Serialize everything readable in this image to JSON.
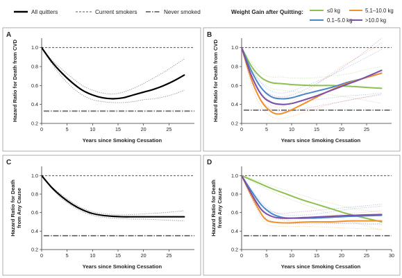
{
  "legend": {
    "items": [
      {
        "label": "All quitters",
        "style": "solid-thick",
        "color": "#000000"
      },
      {
        "label": "Current smokers",
        "style": "dashed",
        "color": "#555555"
      },
      {
        "label": "Never smoked",
        "style": "dash-dot-thick",
        "color": "#7a7a7a"
      }
    ],
    "weight_title": "Weight Gain after Quitting:",
    "weight_items": [
      {
        "label": "≤0 kg",
        "color": "#8cc152"
      },
      {
        "label": "5.1–10.0 kg",
        "color": "#f0902b"
      },
      {
        "label": "0.1–5.0 kg",
        "color": "#4a86c8"
      },
      {
        "label": ">10.0 kg",
        "color": "#7b4fa8"
      }
    ]
  },
  "colors": {
    "ci": "#888888",
    "ref_current": "#555555",
    "ref_never": "#7a7a7a",
    "frame": "#999999"
  },
  "chart_data": [
    {
      "panel": "A",
      "type": "line",
      "ylabel": "Hazard Ratio for Death from CVD",
      "xlabel": "Years since Smoking Cessation",
      "xlim": [
        0,
        30
      ],
      "ylim": [
        0.2,
        1.1
      ],
      "xticks": [
        0,
        5,
        10,
        15,
        20,
        25
      ],
      "yticks": [
        0.2,
        0.4,
        0.6,
        0.8,
        1.0
      ],
      "reference_lines": {
        "current_smokers": 1.0,
        "never_smoked": 0.33
      },
      "series": [
        {
          "name": "All quitters",
          "x": [
            0,
            2,
            4,
            6,
            8,
            10,
            12,
            14,
            16,
            18,
            20,
            22,
            24,
            26,
            28
          ],
          "y": [
            1.0,
            0.85,
            0.73,
            0.63,
            0.55,
            0.5,
            0.47,
            0.46,
            0.47,
            0.5,
            0.53,
            0.56,
            0.6,
            0.65,
            0.71
          ],
          "ci_low": [
            1.0,
            0.83,
            0.69,
            0.58,
            0.5,
            0.45,
            0.43,
            0.42,
            0.42,
            0.43,
            0.45,
            0.46,
            0.48,
            0.51,
            0.55
          ],
          "ci_high": [
            1.0,
            0.87,
            0.77,
            0.68,
            0.6,
            0.55,
            0.52,
            0.51,
            0.53,
            0.57,
            0.62,
            0.68,
            0.74,
            0.81,
            0.88
          ]
        }
      ]
    },
    {
      "panel": "B",
      "type": "line",
      "ylabel": "Hazard Ratio for Death from CVD",
      "xlabel": "Years since Smoking Cessation",
      "xlim": [
        0,
        30
      ],
      "ylim": [
        0.2,
        1.1
      ],
      "xticks": [
        0,
        5,
        10,
        15,
        20,
        25
      ],
      "yticks": [
        0.2,
        0.4,
        0.6,
        0.8,
        1.0
      ],
      "reference_lines": {
        "current_smokers": 1.0,
        "never_smoked": 0.34
      },
      "series": [
        {
          "name": "≤0 kg",
          "x": [
            0,
            2,
            4,
            6,
            8,
            10,
            14,
            18,
            22,
            25,
            28
          ],
          "y": [
            1.0,
            0.8,
            0.68,
            0.63,
            0.62,
            0.61,
            0.6,
            0.6,
            0.59,
            0.58,
            0.57
          ],
          "ci_low": [
            1.0,
            0.76,
            0.63,
            0.57,
            0.55,
            0.54,
            0.52,
            0.5,
            0.47,
            0.44,
            0.41
          ],
          "ci_high": [
            1.0,
            0.84,
            0.73,
            0.69,
            0.69,
            0.68,
            0.68,
            0.7,
            0.73,
            0.77,
            0.8
          ]
        },
        {
          "name": "0.1–5.0 kg",
          "x": [
            0,
            2,
            4,
            6,
            8,
            10,
            12,
            15,
            18,
            21,
            24,
            28
          ],
          "y": [
            1.0,
            0.75,
            0.57,
            0.48,
            0.46,
            0.47,
            0.5,
            0.54,
            0.58,
            0.63,
            0.67,
            0.73
          ],
          "ci_low": [
            1.0,
            0.71,
            0.52,
            0.43,
            0.41,
            0.41,
            0.43,
            0.45,
            0.47,
            0.49,
            0.5,
            0.52
          ],
          "ci_high": [
            1.0,
            0.79,
            0.62,
            0.54,
            0.52,
            0.54,
            0.58,
            0.64,
            0.71,
            0.79,
            0.87,
            0.98
          ]
        },
        {
          "name": "5.1–10.0 kg",
          "x": [
            0,
            2,
            4,
            6,
            7.5,
            9,
            11,
            14,
            17,
            20,
            24,
            28
          ],
          "y": [
            1.0,
            0.66,
            0.43,
            0.32,
            0.3,
            0.32,
            0.37,
            0.45,
            0.53,
            0.6,
            0.67,
            0.73
          ],
          "ci_low": [
            1.0,
            0.6,
            0.37,
            0.27,
            0.25,
            0.26,
            0.29,
            0.34,
            0.39,
            0.43,
            0.47,
            0.5
          ],
          "ci_high": [
            1.0,
            0.72,
            0.5,
            0.39,
            0.37,
            0.4,
            0.46,
            0.57,
            0.69,
            0.8,
            0.92,
            1.05
          ]
        },
        {
          "name": ">10.0 kg",
          "x": [
            0,
            2,
            4,
            6,
            8,
            10,
            12,
            15,
            18,
            21,
            24,
            28
          ],
          "y": [
            1.0,
            0.7,
            0.5,
            0.42,
            0.4,
            0.41,
            0.44,
            0.49,
            0.55,
            0.61,
            0.67,
            0.76
          ],
          "ci_low": [
            1.0,
            0.64,
            0.44,
            0.35,
            0.33,
            0.33,
            0.35,
            0.38,
            0.41,
            0.44,
            0.47,
            0.51
          ],
          "ci_high": [
            1.0,
            0.76,
            0.57,
            0.5,
            0.48,
            0.5,
            0.54,
            0.62,
            0.71,
            0.82,
            0.93,
            1.1
          ]
        }
      ]
    },
    {
      "panel": "C",
      "type": "line",
      "ylabel": "Hazard Ratio for Death from Any Cause",
      "xlabel": "Years since Smoking Cessation",
      "xlim": [
        0,
        30
      ],
      "ylim": [
        0.2,
        1.1
      ],
      "xticks": [
        0,
        5,
        10,
        15,
        20,
        25
      ],
      "yticks": [
        0.2,
        0.4,
        0.6,
        0.8,
        1.0
      ],
      "reference_lines": {
        "current_smokers": 1.0,
        "never_smoked": 0.35
      },
      "series": [
        {
          "name": "All quitters",
          "x": [
            0,
            2,
            4,
            6,
            8,
            10,
            12,
            14,
            16,
            18,
            20,
            24,
            28
          ],
          "y": [
            1.0,
            0.87,
            0.77,
            0.69,
            0.63,
            0.59,
            0.57,
            0.56,
            0.555,
            0.555,
            0.555,
            0.555,
            0.555
          ],
          "ci_low": [
            1.0,
            0.86,
            0.75,
            0.67,
            0.61,
            0.57,
            0.55,
            0.54,
            0.535,
            0.53,
            0.53,
            0.52,
            0.51
          ],
          "ci_high": [
            1.0,
            0.88,
            0.79,
            0.71,
            0.65,
            0.61,
            0.59,
            0.58,
            0.575,
            0.58,
            0.585,
            0.6,
            0.62
          ]
        }
      ]
    },
    {
      "panel": "D",
      "type": "line",
      "ylabel": "Hazard Ratio for Death from Any Cause",
      "xlabel": "Years since Smoking Cessation",
      "xlim": [
        0,
        30
      ],
      "ylim": [
        0.2,
        1.1
      ],
      "xticks": [
        0,
        5,
        10,
        15,
        20,
        25,
        30
      ],
      "yticks": [
        0.2,
        0.4,
        0.6,
        0.8,
        1.0
      ],
      "reference_lines": {
        "current_smokers": 1.0,
        "never_smoked": 0.35
      },
      "series": [
        {
          "name": "≤0 kg",
          "x": [
            0,
            3,
            6,
            9,
            12,
            15,
            18,
            21,
            24,
            28
          ],
          "y": [
            1.0,
            0.93,
            0.86,
            0.8,
            0.74,
            0.69,
            0.64,
            0.59,
            0.55,
            0.5
          ],
          "ci_low": [
            1.0,
            0.91,
            0.83,
            0.76,
            0.7,
            0.64,
            0.58,
            0.52,
            0.47,
            0.41
          ],
          "ci_high": [
            1.0,
            0.95,
            0.89,
            0.84,
            0.79,
            0.74,
            0.7,
            0.66,
            0.63,
            0.6
          ]
        },
        {
          "name": "0.1–5.0 kg",
          "x": [
            0,
            2,
            4,
            6,
            8,
            10,
            14,
            18,
            22,
            28
          ],
          "y": [
            1.0,
            0.83,
            0.68,
            0.59,
            0.55,
            0.54,
            0.54,
            0.55,
            0.56,
            0.57
          ],
          "ci_low": [
            1.0,
            0.81,
            0.65,
            0.56,
            0.52,
            0.51,
            0.5,
            0.49,
            0.49,
            0.48
          ],
          "ci_high": [
            1.0,
            0.85,
            0.71,
            0.62,
            0.58,
            0.57,
            0.58,
            0.61,
            0.64,
            0.67
          ]
        },
        {
          "name": "5.1–10.0 kg",
          "x": [
            0,
            2,
            4,
            5,
            6,
            8,
            10,
            14,
            18,
            22,
            28
          ],
          "y": [
            1.0,
            0.78,
            0.58,
            0.52,
            0.5,
            0.49,
            0.49,
            0.5,
            0.5,
            0.51,
            0.51
          ],
          "ci_low": [
            1.0,
            0.75,
            0.54,
            0.48,
            0.46,
            0.45,
            0.45,
            0.45,
            0.44,
            0.43,
            0.42
          ],
          "ci_high": [
            1.0,
            0.81,
            0.62,
            0.56,
            0.54,
            0.53,
            0.53,
            0.55,
            0.57,
            0.59,
            0.62
          ]
        },
        {
          "name": ">10.0 kg",
          "x": [
            0,
            2,
            4,
            6,
            8,
            10,
            14,
            18,
            22,
            28
          ],
          "y": [
            1.0,
            0.8,
            0.63,
            0.56,
            0.54,
            0.54,
            0.55,
            0.56,
            0.57,
            0.58
          ],
          "ci_low": [
            1.0,
            0.76,
            0.58,
            0.51,
            0.49,
            0.48,
            0.48,
            0.48,
            0.48,
            0.47
          ],
          "ci_high": [
            1.0,
            0.84,
            0.68,
            0.61,
            0.59,
            0.6,
            0.62,
            0.64,
            0.66,
            0.69
          ]
        }
      ]
    }
  ]
}
